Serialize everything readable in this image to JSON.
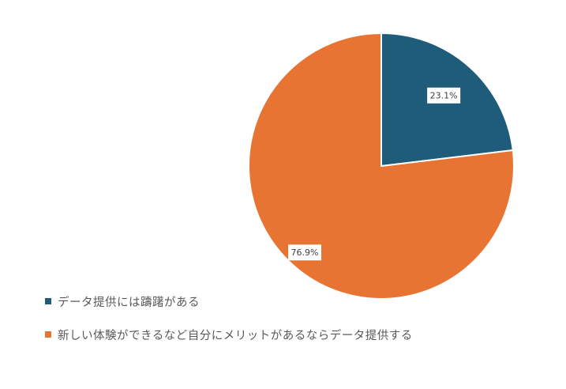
{
  "chart_data": {
    "type": "pie",
    "title": "",
    "categories": [
      "データ提供には躊躇がある",
      "新しい体験ができるなど自分にメリットがあるならデータ提供する"
    ],
    "values": [
      23.1,
      76.9
    ],
    "data_labels": [
      "23.1%",
      "76.9%"
    ],
    "colors": [
      "#1f5c7a",
      "#e87433"
    ],
    "legend_position": "bottom-left",
    "start_angle_deg": 0,
    "direction": "clockwise"
  }
}
